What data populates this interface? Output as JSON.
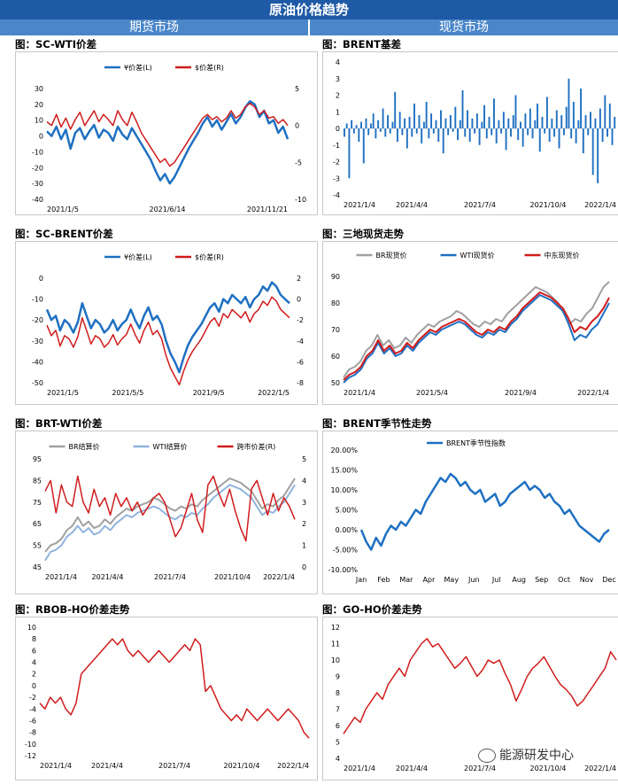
{
  "header": {
    "title": "原油价格趋势",
    "left_section": "期货市场",
    "right_section": "现货市场"
  },
  "watermark": "能源研发中心",
  "colors": {
    "blue": "#1f70c1",
    "red": "#d01c1c",
    "gray": "#a0a0a0",
    "lightblue": "#8fb4df",
    "header": "#1f5aa6",
    "section": "#4a86c8"
  },
  "chart_data": [
    {
      "id": "sc_wti",
      "type": "line",
      "title": "图：SC-WTI价差",
      "x_ticks": [
        "2021/1/5",
        "2021/6/14",
        "2021/11/21"
      ],
      "yleft_ticks": [
        "30",
        "20",
        "10",
        "0",
        "-10",
        "-20",
        "-30",
        "-40"
      ],
      "yleft_range": [
        -40,
        30
      ],
      "yright_ticks": [
        "5",
        "0",
        "-5",
        "-10"
      ],
      "yright_range": [
        -10,
        5
      ],
      "series": [
        {
          "name": "¥价差(L)",
          "color": "#1f70c1",
          "axis": "left",
          "width": 2.5,
          "values": [
            3,
            0,
            6,
            -2,
            4,
            -8,
            2,
            5,
            -2,
            3,
            7,
            -1,
            4,
            2,
            -3,
            6,
            1,
            -2,
            5,
            0,
            -5,
            -10,
            -15,
            -22,
            -28,
            -24,
            -30,
            -26,
            -20,
            -14,
            -8,
            -3,
            2,
            8,
            12,
            6,
            10,
            4,
            9,
            14,
            8,
            12,
            18,
            22,
            20,
            12,
            16,
            8,
            10,
            2,
            6,
            -2
          ]
        },
        {
          "name": "$价差(R)",
          "color": "#d01c1c",
          "axis": "right",
          "width": 1.5,
          "values": [
            0.5,
            0,
            1.5,
            -0.2,
            1,
            -0.5,
            0.8,
            1.8,
            0,
            1,
            2,
            0.5,
            1.5,
            0.8,
            0,
            2,
            0.8,
            0,
            1.8,
            0.5,
            -1,
            -2,
            -3,
            -4,
            -5,
            -4.5,
            -5.5,
            -5,
            -4,
            -3,
            -2,
            -1,
            0,
            1,
            1.5,
            0.8,
            1.2,
            0.5,
            1,
            2,
            1,
            1.5,
            2.5,
            3,
            2.5,
            1.5,
            2,
            1,
            1.2,
            0.3,
            0.8,
            0
          ]
        }
      ]
    },
    {
      "id": "brent_basis",
      "type": "bar",
      "title": "图：BRENT基差",
      "x_ticks": [
        "2021/1/4",
        "2021/4/4",
        "2021/7/4",
        "2021/10/4",
        "2022/1/4"
      ],
      "y_ticks": [
        "4",
        "3",
        "2",
        "1",
        "0",
        "-1",
        "-2",
        "-3",
        "-4"
      ],
      "y_range": [
        -4,
        4
      ],
      "series": [
        {
          "name": "",
          "color": "#1f70c1",
          "values": [
            -0.5,
            0.3,
            -3.0,
            0.5,
            -0.3,
            0.2,
            -0.8,
            0.4,
            -2.1,
            0.6,
            -0.4,
            0.3,
            0.9,
            -0.6,
            0.5,
            -0.2,
            1.2,
            -0.5,
            0.8,
            -0.3,
            0.4,
            2.2,
            -0.8,
            1.0,
            -0.4,
            0.6,
            -1.2,
            0.7,
            -0.5,
            1.5,
            -0.3,
            0.8,
            -0.9,
            0.4,
            1.6,
            -0.6,
            0.9,
            -0.3,
            0.5,
            -0.8,
            1.1,
            -1.5,
            0.6,
            -0.4,
            0.8,
            -0.2,
            1.3,
            -0.7,
            0.5,
            2.3,
            -0.5,
            1.1,
            -0.8,
            0.6,
            -0.3,
            0.9,
            -1.0,
            0.4,
            1.4,
            -0.6,
            0.7,
            -0.4,
            1.8,
            -0.9,
            0.5,
            -0.3,
            1.0,
            -1.3,
            0.6,
            -0.5,
            0.8,
            2.0,
            -0.7,
            0.4,
            -1.1,
            0.9,
            -0.4,
            1.2,
            -0.6,
            0.5,
            1.5,
            -1.4,
            0.7,
            -0.3,
            1.9,
            -0.8,
            0.6,
            -0.5,
            1.1,
            -1.2,
            0.8,
            -0.4,
            1.3,
            3.0,
            -0.6,
            1.6,
            -0.9,
            0.5,
            2.4,
            -1.5,
            0.8,
            -0.4,
            1.0,
            -2.8,
            0.6,
            -3.3,
            1.2,
            -0.8,
            2.0,
            -0.5,
            1.5,
            -1.0,
            0.7
          ]
        }
      ]
    },
    {
      "id": "sc_brent",
      "type": "line",
      "title": "图：SC-BRENT价差",
      "x_ticks": [
        "2021/1/5",
        "2021/5/5",
        "2021/9/5",
        "2022/1/5"
      ],
      "yleft_ticks": [
        "0",
        "-10",
        "-20",
        "-30",
        "-40",
        "-50"
      ],
      "yleft_range": [
        -50,
        0
      ],
      "yright_ticks": [
        "2",
        "0",
        "-2",
        "-4",
        "-6",
        "-8"
      ],
      "yright_range": [
        -8,
        2
      ],
      "series": [
        {
          "name": "¥价差(L)",
          "color": "#1f70c1",
          "axis": "left",
          "width": 2.5,
          "values": [
            -15,
            -20,
            -18,
            -25,
            -20,
            -22,
            -26,
            -21,
            -12,
            -18,
            -24,
            -20,
            -22,
            -26,
            -24,
            -20,
            -25,
            -22,
            -20,
            -15,
            -20,
            -24,
            -18,
            -14,
            -20,
            -18,
            -22,
            -30,
            -36,
            -40,
            -45,
            -38,
            -32,
            -28,
            -25,
            -22,
            -18,
            -14,
            -12,
            -16,
            -10,
            -12,
            -8,
            -10,
            -12,
            -9,
            -14,
            -10,
            -8,
            -4,
            -6,
            -2,
            -4,
            -8,
            -10,
            -12
          ]
        },
        {
          "name": "$价差(R)",
          "color": "#d01c1c",
          "axis": "right",
          "width": 1.5,
          "values": [
            -2.5,
            -3.5,
            -3,
            -4.5,
            -3.5,
            -3.8,
            -4.6,
            -3.6,
            -1.8,
            -3,
            -4.3,
            -3.5,
            -3.8,
            -4.6,
            -4.2,
            -3.4,
            -4.4,
            -3.8,
            -3.4,
            -2.4,
            -3.4,
            -4.2,
            -3,
            -2.2,
            -3.4,
            -3,
            -3.8,
            -5.4,
            -6.6,
            -7.4,
            -8.2,
            -6.9,
            -5.8,
            -5,
            -4.4,
            -3.8,
            -3,
            -2.2,
            -1.8,
            -2.6,
            -1.4,
            -1.8,
            -1,
            -1.4,
            -1.8,
            -1.2,
            -2.2,
            -1.4,
            -1,
            -0.2,
            -0.6,
            0.2,
            -0.2,
            -1,
            -1.4,
            -1.8
          ]
        }
      ]
    },
    {
      "id": "three_spot",
      "type": "line",
      "title": "图：三地现货走势",
      "x_ticks": [
        "2021/1/4",
        "2021/5/4",
        "2021/9/4",
        "2022/1/4"
      ],
      "y_ticks": [
        "90",
        "80",
        "70",
        "60",
        "50"
      ],
      "y_range": [
        50,
        90
      ],
      "series": [
        {
          "name": "BR现货价",
          "color": "#a0a0a0",
          "width": 2,
          "values": [
            52,
            55,
            56,
            58,
            62,
            64,
            68,
            64,
            66,
            63,
            64,
            67,
            65,
            68,
            70,
            72,
            71,
            73,
            74,
            75,
            77,
            76,
            74,
            72,
            71,
            73,
            72,
            74,
            73,
            76,
            78,
            80,
            82,
            84,
            86,
            85,
            84,
            82,
            80,
            76,
            72,
            74,
            73,
            76,
            78,
            82,
            86,
            88
          ]
        },
        {
          "name": "WTI现货价",
          "color": "#1f70c1",
          "width": 2,
          "values": [
            50,
            52,
            53,
            55,
            59,
            61,
            65,
            61,
            63,
            60,
            61,
            64,
            62,
            65,
            67,
            69,
            68,
            70,
            71,
            72,
            73,
            72,
            70,
            68,
            67,
            69,
            68,
            70,
            69,
            72,
            74,
            77,
            79,
            81,
            83,
            82,
            81,
            79,
            77,
            72,
            66,
            68,
            67,
            70,
            72,
            76,
            80
          ]
        },
        {
          "name": "中东现货价",
          "color": "#d01c1c",
          "width": 2,
          "values": [
            51,
            53,
            54,
            56,
            60,
            62,
            66,
            62,
            64,
            61,
            62,
            65,
            63,
            66,
            68,
            70,
            69,
            71,
            72,
            73,
            74,
            73,
            71,
            69,
            68,
            70,
            69,
            71,
            70,
            73,
            75,
            78,
            80,
            82,
            84,
            83,
            82,
            80,
            78,
            74,
            69,
            71,
            70,
            73,
            75,
            78,
            82
          ]
        }
      ]
    },
    {
      "id": "brt_wti",
      "type": "line",
      "title": "图：BRT-WTI价差",
      "x_ticks": [
        "2021/1/4",
        "2021/4/4",
        "2021/7/4",
        "2021/10/4",
        "2022/1/4"
      ],
      "yleft_ticks": [
        "95",
        "85",
        "75",
        "65",
        "55",
        "45"
      ],
      "yleft_range": [
        45,
        95
      ],
      "yright_ticks": [
        "5",
        "4",
        "3",
        "2",
        "1",
        "0"
      ],
      "yright_range": [
        0,
        5
      ],
      "series": [
        {
          "name": "BR结算价",
          "color": "#a0a0a0",
          "axis": "left",
          "width": 2,
          "values": [
            52,
            55,
            56,
            58,
            62,
            64,
            68,
            64,
            66,
            63,
            64,
            67,
            65,
            68,
            70,
            72,
            71,
            73,
            74,
            75,
            77,
            76,
            74,
            72,
            71,
            73,
            72,
            74,
            73,
            76,
            78,
            80,
            82,
            84,
            86,
            85,
            84,
            82,
            80,
            76,
            72,
            74,
            73,
            76,
            78,
            82,
            86
          ]
        },
        {
          "name": "WTI结算价",
          "color": "#8fb4df",
          "axis": "left",
          "width": 2,
          "values": [
            48,
            52,
            53,
            55,
            59,
            61,
            64,
            61,
            63,
            60,
            61,
            64,
            62,
            65,
            67,
            69,
            68,
            70,
            71,
            72,
            73,
            72,
            70,
            68,
            67,
            69,
            68,
            70,
            69,
            72,
            74,
            77,
            79,
            81,
            83,
            82,
            81,
            79,
            77,
            73,
            69,
            71,
            70,
            73,
            75,
            79,
            83
          ]
        },
        {
          "name": "跨市价差(R)",
          "color": "#d01c1c",
          "axis": "right",
          "width": 1.5,
          "values": [
            3.5,
            4,
            2.5,
            3.8,
            3,
            2.8,
            4.2,
            3,
            2.5,
            3.6,
            2.8,
            3.2,
            2.4,
            3.4,
            2.8,
            3.2,
            2.6,
            3.0,
            2.4,
            2.8,
            3.2,
            3.4,
            3.0,
            2.2,
            1.4,
            1.8,
            2.6,
            3.4,
            2.2,
            1.6,
            3.8,
            4.2,
            3.4,
            2.8,
            3.6,
            2.6,
            1.8,
            1.2,
            3.6,
            4.0,
            3.2,
            2.4,
            3.4,
            2.6,
            3.2,
            2.8,
            2.2
          ]
        }
      ]
    },
    {
      "id": "brent_season",
      "type": "line",
      "title": "图：BRENT季节性走势",
      "x_ticks": [
        "Jan",
        "Feb",
        "Mar",
        "Apr",
        "May",
        "Jun",
        "Jul",
        "Aug",
        "Sep",
        "Oct",
        "Nov",
        "Dec"
      ],
      "y_ticks": [
        "20.00%",
        "15.00%",
        "10.00%",
        "5.00%",
        "0.00%",
        "-5.00%",
        "-10.00%"
      ],
      "y_range": [
        -10,
        20
      ],
      "series": [
        {
          "name": "BRENT季节性指数",
          "color": "#1f70c1",
          "width": 2.5,
          "values": [
            0,
            -3,
            -5,
            -2,
            -4,
            -1,
            1,
            0,
            2,
            1,
            3,
            5,
            4,
            7,
            9,
            11,
            13,
            12,
            14,
            13,
            11,
            12,
            10,
            9,
            10,
            7,
            8,
            9,
            6,
            7,
            9,
            10,
            11,
            12,
            10,
            11,
            10,
            8,
            9,
            7,
            6,
            4,
            5,
            3,
            1,
            0,
            -1,
            -2,
            -3,
            -1,
            0
          ]
        }
      ]
    },
    {
      "id": "rbob_ho",
      "type": "line",
      "title": "图：RBOB-HO价差走势",
      "x_ticks": [
        "2021/1/4",
        "2021/4/4",
        "2021/7/4",
        "2021/10/4",
        "2022/1/4"
      ],
      "y_ticks": [
        "10",
        "8",
        "6",
        "4",
        "2",
        "0",
        "-2",
        "-4",
        "-6",
        "-8",
        "-10",
        "-12"
      ],
      "y_range": [
        -12,
        10
      ],
      "series": [
        {
          "name": "",
          "color": "#d01c1c",
          "width": 1.5,
          "values": [
            -3,
            -4,
            -2,
            -3,
            -2,
            -4,
            -5,
            -3,
            2,
            3,
            4,
            5,
            6,
            7,
            8,
            7,
            8,
            6,
            5,
            6,
            5,
            4,
            5,
            6,
            5,
            4,
            5,
            6,
            7,
            6,
            8,
            7,
            -1,
            0,
            -2,
            -4,
            -5,
            -6,
            -5,
            -6,
            -4,
            -5,
            -6,
            -5,
            -4,
            -5,
            -6,
            -5,
            -4,
            -5,
            -6,
            -8,
            -9
          ]
        }
      ]
    },
    {
      "id": "go_ho",
      "type": "line",
      "title": "图：GO-HO价差走势",
      "x_ticks": [
        "2021/1/4",
        "2021/4/4",
        "2021/7/4",
        "2021/10/4",
        "2022/1/4"
      ],
      "y_ticks": [
        "12",
        "11",
        "10",
        "9",
        "8",
        "7",
        "6",
        "5",
        "4"
      ],
      "y_range": [
        4,
        12
      ],
      "series": [
        {
          "name": "",
          "color": "#d01c1c",
          "width": 1.5,
          "values": [
            5.5,
            6,
            6.5,
            6.2,
            7,
            7.5,
            8,
            7.6,
            8.5,
            9,
            9.5,
            9,
            10,
            10.5,
            11,
            11.3,
            10.8,
            11,
            10.5,
            10,
            9.5,
            9.8,
            10.2,
            9.6,
            9,
            9.4,
            10,
            9.8,
            10,
            9.2,
            8.5,
            7.5,
            8.2,
            9,
            9.5,
            9.8,
            10.2,
            9.6,
            9,
            8.5,
            8.2,
            7.8,
            7.2,
            7.5,
            8,
            8.5,
            9,
            9.5,
            10.5,
            10
          ]
        }
      ]
    }
  ]
}
